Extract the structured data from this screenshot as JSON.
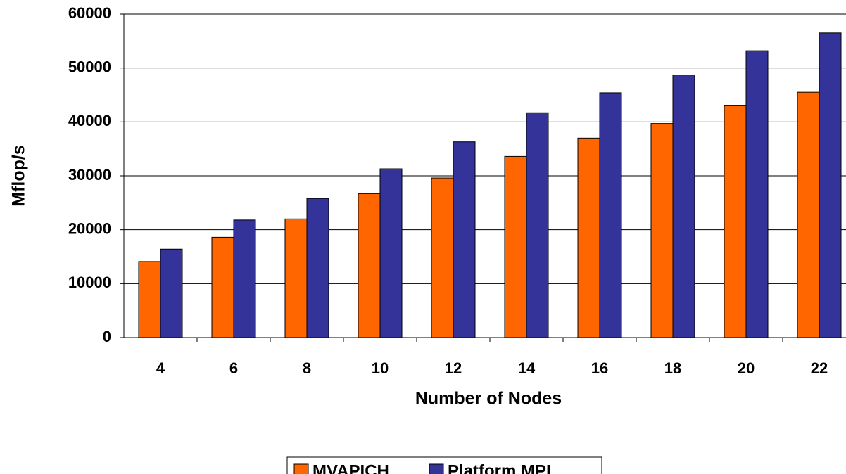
{
  "chart_data": {
    "type": "bar",
    "categories": [
      "4",
      "6",
      "8",
      "10",
      "12",
      "14",
      "16",
      "18",
      "20",
      "22"
    ],
    "series": [
      {
        "name": "MVAPICH",
        "color": "#ff6600",
        "values": [
          14100,
          18600,
          22000,
          26700,
          29600,
          33600,
          37000,
          39700,
          43000,
          45500
        ]
      },
      {
        "name": "Platform MPI",
        "color": "#333399",
        "values": [
          16400,
          21800,
          25800,
          31300,
          36300,
          41700,
          45400,
          48700,
          53200,
          56500
        ]
      }
    ],
    "xlabel": "Number of Nodes",
    "ylabel": "Mflop/s",
    "ylim": [
      0,
      60000
    ],
    "yticks": [
      0,
      10000,
      20000,
      30000,
      40000,
      50000,
      60000
    ],
    "grid": true,
    "legend": "bottom"
  }
}
